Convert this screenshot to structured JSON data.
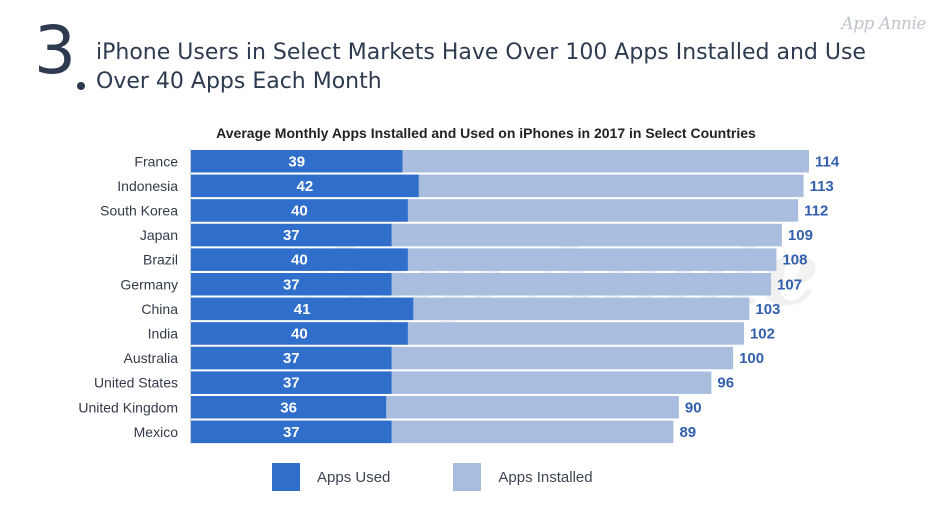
{
  "brand": "App Annie",
  "slide": {
    "number": "3",
    "title": "iPhone Users in Select Markets Have Over 100 Apps Installed and Use Over 40 Apps Each Month"
  },
  "watermark": "App Annie",
  "colors": {
    "used": "#2f6fcb",
    "installed": "#a9bedf",
    "installed_label": "#3360ad",
    "used_label": "#ffffff"
  },
  "chart_data": {
    "type": "bar",
    "orientation": "horizontal",
    "title": "Average Monthly Apps Installed and Used on iPhones in 2017 in Select Countries",
    "categories": [
      "France",
      "Indonesia",
      "South Korea",
      "Japan",
      "Brazil",
      "Germany",
      "China",
      "India",
      "Australia",
      "United States",
      "United Kingdom",
      "Mexico"
    ],
    "series": [
      {
        "name": "Apps Used",
        "values": [
          39,
          42,
          40,
          37,
          40,
          37,
          41,
          40,
          37,
          37,
          36,
          37
        ]
      },
      {
        "name": "Apps Installed",
        "values": [
          114,
          113,
          112,
          109,
          108,
          107,
          103,
          102,
          100,
          96,
          90,
          89
        ]
      }
    ],
    "xlim": [
      0,
      114
    ],
    "grid": false,
    "legend": "bottom"
  }
}
